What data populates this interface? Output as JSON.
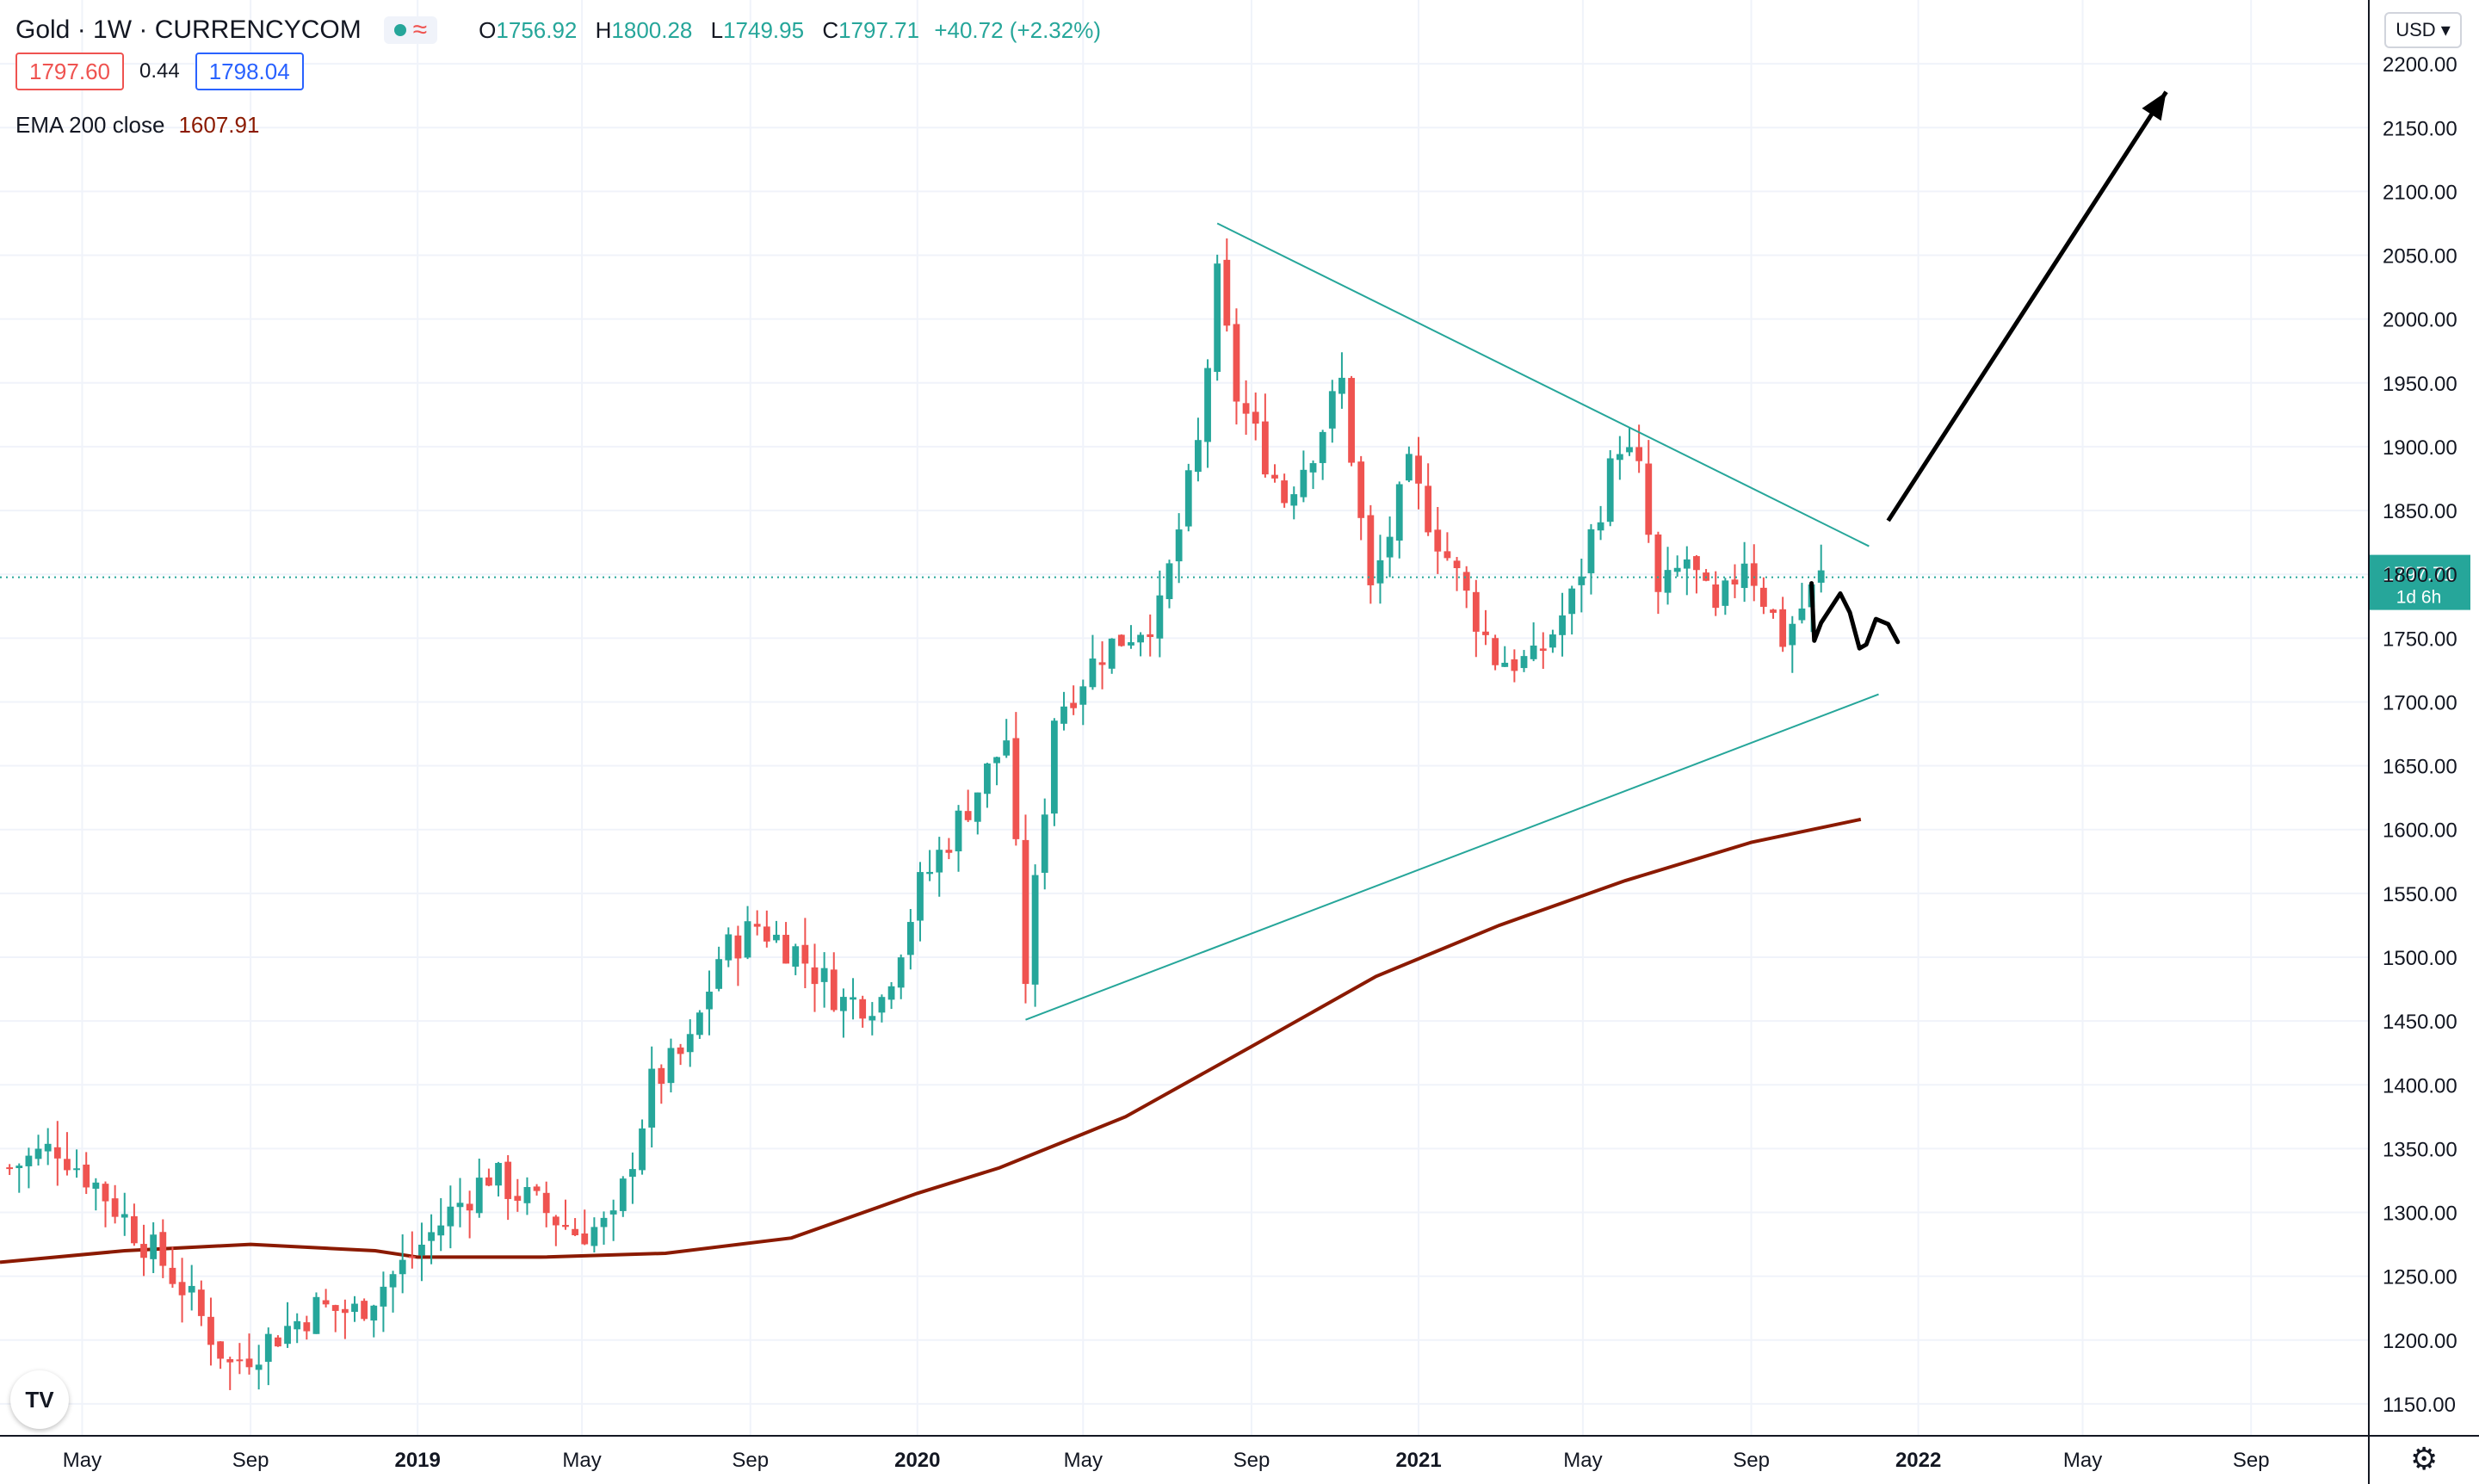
{
  "header": {
    "symbol": "Gold · 1W · CURRENCYCOM",
    "wave_icon": "≈",
    "ohlc": {
      "o_label": "O",
      "o": "1756.92",
      "h_label": "H",
      "h": "1800.28",
      "l_label": "L",
      "l": "1749.95",
      "c_label": "C",
      "c": "1797.71",
      "change": "+40.72 (+2.32%)"
    },
    "bid": "1797.60",
    "spread": "0.44",
    "ask": "1798.04",
    "indicator_name": "EMA 200 close",
    "indicator_value": "1607.91"
  },
  "price_scale": {
    "currency": "USD ▾",
    "last_price": "1797.71",
    "countdown": "1d 6h"
  },
  "logo_text": "TV",
  "settings_icon": "⚙",
  "colors": {
    "up": "#26a69a",
    "down": "#ef5350",
    "ema": "#8b1a00",
    "trendline": "#26a69a",
    "arrow": "#000000",
    "grid": "#f0f3fa"
  },
  "chart_data": {
    "type": "candlestick",
    "interval": "1W",
    "ylim": [
      1125,
      2250
    ],
    "xlim": [
      "2018-03-02",
      "2022-11-26"
    ],
    "yticks": [
      1150,
      1200,
      1250,
      1300,
      1350,
      1400,
      1450,
      1500,
      1550,
      1600,
      1650,
      1700,
      1750,
      1800,
      1850,
      1900,
      1950,
      2000,
      2050,
      2100,
      2150,
      2200
    ],
    "ytick_labels": [
      "1150.00",
      "1200.00",
      "1250.00",
      "1300.00",
      "1350.00",
      "1400.00",
      "1450.00",
      "1500.00",
      "1550.00",
      "1600.00",
      "1650.00",
      "1700.00",
      "1750.00",
      "1800.00",
      "1850.00",
      "1900.00",
      "1950.00",
      "2000.00",
      "2050.00",
      "2100.00",
      "2150.00",
      "2200.00"
    ],
    "xticks": [
      {
        "label": "May",
        "date": "2018-05-01",
        "bold": false
      },
      {
        "label": "Sep",
        "date": "2018-09-01",
        "bold": false
      },
      {
        "label": "2019",
        "date": "2019-01-01",
        "bold": true
      },
      {
        "label": "May",
        "date": "2019-05-01",
        "bold": false
      },
      {
        "label": "Sep",
        "date": "2019-09-01",
        "bold": false
      },
      {
        "label": "2020",
        "date": "2020-01-01",
        "bold": true
      },
      {
        "label": "May",
        "date": "2020-05-01",
        "bold": false
      },
      {
        "label": "Sep",
        "date": "2020-09-01",
        "bold": false
      },
      {
        "label": "2021",
        "date": "2021-01-01",
        "bold": true
      },
      {
        "label": "May",
        "date": "2021-05-01",
        "bold": false
      },
      {
        "label": "Sep",
        "date": "2021-09-01",
        "bold": false
      },
      {
        "label": "2022",
        "date": "2022-01-01",
        "bold": true
      },
      {
        "label": "May",
        "date": "2022-05-01",
        "bold": false
      },
      {
        "label": "Sep",
        "date": "2022-09-01",
        "bold": false
      }
    ],
    "anchors": [
      [
        "2018-03-09",
        1335
      ],
      [
        "2018-04-13",
        1352
      ],
      [
        "2018-05-11",
        1322
      ],
      [
        "2018-06-15",
        1278
      ],
      [
        "2018-07-13",
        1242
      ],
      [
        "2018-08-17",
        1180
      ],
      [
        "2018-09-07",
        1195
      ],
      [
        "2018-10-19",
        1225
      ],
      [
        "2018-11-16",
        1222
      ],
      [
        "2018-12-21",
        1258
      ],
      [
        "2019-01-25",
        1300
      ],
      [
        "2019-02-22",
        1330
      ],
      [
        "2019-03-22",
        1310
      ],
      [
        "2019-04-26",
        1285
      ],
      [
        "2019-05-24",
        1290
      ],
      [
        "2019-06-21",
        1400
      ],
      [
        "2019-07-19",
        1430
      ],
      [
        "2019-08-09",
        1500
      ],
      [
        "2019-09-06",
        1525
      ],
      [
        "2019-10-04",
        1505
      ],
      [
        "2019-11-08",
        1465
      ],
      [
        "2019-12-06",
        1468
      ],
      [
        "2020-01-03",
        1555
      ],
      [
        "2020-02-21",
        1645
      ],
      [
        "2020-03-06",
        1672
      ],
      [
        "2020-03-20",
        1485
      ],
      [
        "2020-04-10",
        1690
      ],
      [
        "2020-05-15",
        1740
      ],
      [
        "2020-06-26",
        1770
      ],
      [
        "2020-07-24",
        1900
      ],
      [
        "2020-08-07",
        2030
      ],
      [
        "2020-08-21",
        1940
      ],
      [
        "2020-09-25",
        1860
      ],
      [
        "2020-10-16",
        1900
      ],
      [
        "2020-11-06",
        1950
      ],
      [
        "2020-11-27",
        1785
      ],
      [
        "2020-12-25",
        1880
      ],
      [
        "2021-01-08",
        1845
      ],
      [
        "2021-02-26",
        1735
      ],
      [
        "2021-03-26",
        1730
      ],
      [
        "2021-04-23",
        1780
      ],
      [
        "2021-05-28",
        1905
      ],
      [
        "2021-06-11",
        1878
      ],
      [
        "2021-06-25",
        1780
      ],
      [
        "2021-07-16",
        1812
      ],
      [
        "2021-08-06",
        1765
      ],
      [
        "2021-08-27",
        1815
      ],
      [
        "2021-09-24",
        1750
      ],
      [
        "2021-10-22",
        1797.71
      ]
    ],
    "ema_200": [
      [
        "2018-03-02",
        1261
      ],
      [
        "2018-06-01",
        1270
      ],
      [
        "2018-09-01",
        1275
      ],
      [
        "2018-12-01",
        1270
      ],
      [
        "2019-01-01",
        1265
      ],
      [
        "2019-04-01",
        1265
      ],
      [
        "2019-07-01",
        1268
      ],
      [
        "2019-10-01",
        1280
      ],
      [
        "2020-01-01",
        1315
      ],
      [
        "2020-03-01",
        1335
      ],
      [
        "2020-06-01",
        1375
      ],
      [
        "2020-09-01",
        1430
      ],
      [
        "2020-12-01",
        1485
      ],
      [
        "2021-03-01",
        1525
      ],
      [
        "2021-06-01",
        1560
      ],
      [
        "2021-09-01",
        1590
      ],
      [
        "2021-11-20",
        1608
      ]
    ],
    "trendlines": [
      {
        "name": "upper",
        "from": [
          "2020-08-07",
          2075
        ],
        "to": [
          "2021-11-26",
          1822
        ]
      },
      {
        "name": "lower",
        "from": [
          "2020-03-20",
          1451
        ],
        "to": [
          "2021-12-03",
          1706
        ]
      }
    ],
    "arrow": {
      "from": [
        "2021-12-10",
        1842
      ],
      "to": [
        "2022-07-01",
        2178
      ]
    },
    "squiggle": [
      [
        "2021-10-15",
        1793
      ],
      [
        "2021-10-17",
        1748
      ],
      [
        "2021-10-22",
        1762
      ],
      [
        "2021-11-05",
        1785
      ],
      [
        "2021-11-12",
        1770
      ],
      [
        "2021-11-19",
        1742
      ],
      [
        "2021-11-24",
        1745
      ],
      [
        "2021-12-01",
        1765
      ],
      [
        "2021-12-10",
        1761
      ],
      [
        "2021-12-17",
        1747
      ]
    ],
    "last_price": 1797.71
  }
}
